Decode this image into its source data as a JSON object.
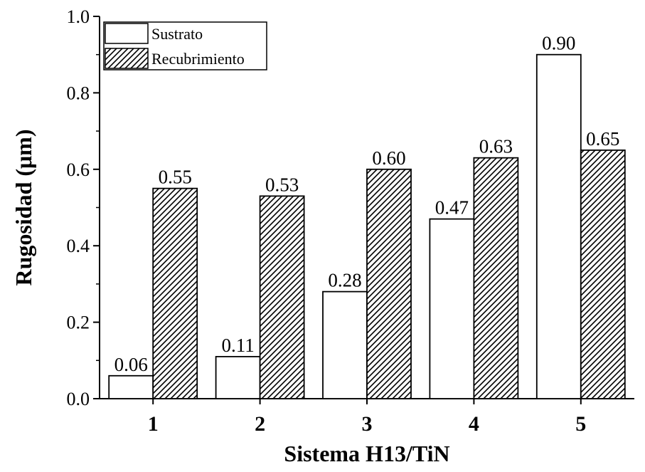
{
  "chart_data": {
    "type": "bar",
    "xlabel": "Sistema H13/TiN",
    "ylabel": "Rugosidad (μm)",
    "categories": [
      "1",
      "2",
      "3",
      "4",
      "5"
    ],
    "ylim": [
      0,
      1.0
    ],
    "yticks": [
      "0.0",
      "0.2",
      "0.4",
      "0.6",
      "0.8",
      "1.0"
    ],
    "legend_position": "top-left",
    "grid": false,
    "series": [
      {
        "name": "Sustrato",
        "fill": "white",
        "values": [
          0.06,
          0.11,
          0.28,
          0.47,
          0.9
        ],
        "labels": [
          "0.06",
          "0.11",
          "0.28",
          "0.47",
          "0.90"
        ]
      },
      {
        "name": "Recubrimiento",
        "fill": "hatched",
        "values": [
          0.55,
          0.53,
          0.6,
          0.63,
          0.65
        ],
        "labels": [
          "0.55",
          "0.53",
          "0.60",
          "0.63",
          "0.65"
        ]
      }
    ],
    "colors": {
      "axis": "#000000",
      "bar_fill": "#ffffff",
      "hatch": "#000000"
    }
  }
}
